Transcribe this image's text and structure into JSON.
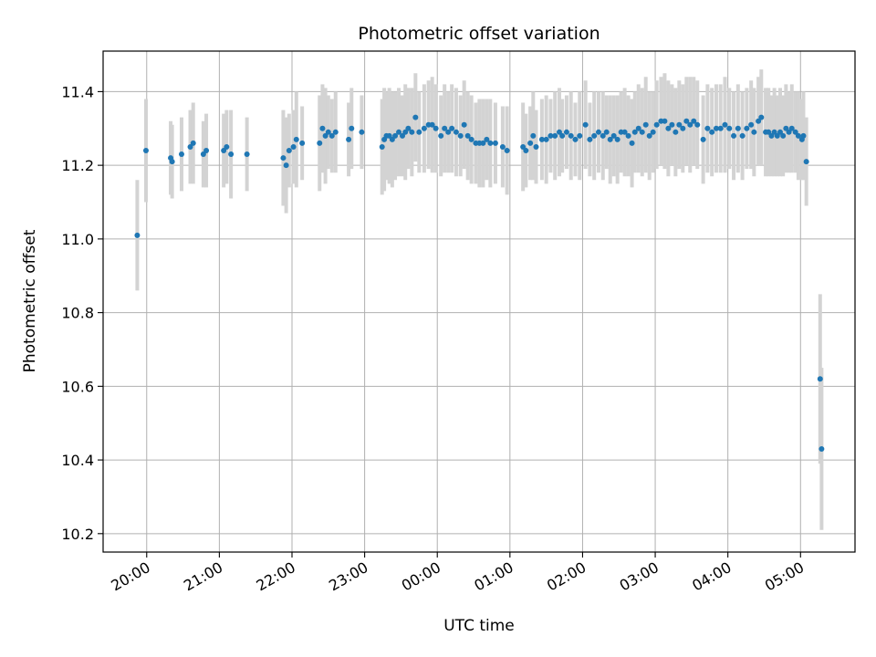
{
  "chart_data": {
    "type": "scatter",
    "title": "Photometric offset variation",
    "xlabel": "UTC time",
    "ylabel": "Photometric offset",
    "x_units": "hours after 20:00 UTC",
    "xlim": [
      -0.6,
      9.75
    ],
    "ylim": [
      10.15,
      11.51
    ],
    "grid": true,
    "errorbar_color": "#d3d3d3",
    "marker_color": "#1f77b4",
    "x_ticks": [
      {
        "value": 0,
        "label": "20:00"
      },
      {
        "value": 1,
        "label": "21:00"
      },
      {
        "value": 2,
        "label": "22:00"
      },
      {
        "value": 3,
        "label": "23:00"
      },
      {
        "value": 4,
        "label": "00:00"
      },
      {
        "value": 5,
        "label": "01:00"
      },
      {
        "value": 6,
        "label": "02:00"
      },
      {
        "value": 7,
        "label": "03:00"
      },
      {
        "value": 8,
        "label": "04:00"
      },
      {
        "value": 9,
        "label": "05:00"
      }
    ],
    "y_ticks": [
      {
        "value": 10.2,
        "label": "10.2"
      },
      {
        "value": 10.4,
        "label": "10.4"
      },
      {
        "value": 10.6,
        "label": "10.6"
      },
      {
        "value": 10.8,
        "label": "10.8"
      },
      {
        "value": 11.0,
        "label": "11.0"
      },
      {
        "value": 11.2,
        "label": "11.2"
      },
      {
        "value": 11.4,
        "label": "11.4"
      }
    ],
    "points": [
      [
        -0.13,
        11.01,
        0.15
      ],
      [
        -0.01,
        11.24,
        0.14
      ],
      [
        0.33,
        11.22,
        0.1
      ],
      [
        0.35,
        11.21,
        0.1
      ],
      [
        0.48,
        11.23,
        0.1
      ],
      [
        0.6,
        11.25,
        0.1
      ],
      [
        0.64,
        11.26,
        0.11
      ],
      [
        0.78,
        11.23,
        0.09
      ],
      [
        0.82,
        11.24,
        0.1
      ],
      [
        1.06,
        11.24,
        0.1
      ],
      [
        1.1,
        11.25,
        0.1
      ],
      [
        1.16,
        11.23,
        0.12
      ],
      [
        1.38,
        11.23,
        0.1
      ],
      [
        1.88,
        11.22,
        0.13
      ],
      [
        1.92,
        11.2,
        0.13
      ],
      [
        1.96,
        11.24,
        0.1
      ],
      [
        2.02,
        11.25,
        0.1
      ],
      [
        2.06,
        11.27,
        0.13
      ],
      [
        2.14,
        11.26,
        0.1
      ],
      [
        2.38,
        11.26,
        0.13
      ],
      [
        2.42,
        11.3,
        0.12
      ],
      [
        2.46,
        11.28,
        0.13
      ],
      [
        2.5,
        11.29,
        0.1
      ],
      [
        2.55,
        11.28,
        0.1
      ],
      [
        2.6,
        11.29,
        0.11
      ],
      [
        2.78,
        11.27,
        0.1
      ],
      [
        2.82,
        11.3,
        0.11
      ],
      [
        2.96,
        11.29,
        0.1
      ],
      [
        3.24,
        11.25,
        0.13
      ],
      [
        3.27,
        11.27,
        0.14
      ],
      [
        3.3,
        11.28,
        0.12
      ],
      [
        3.34,
        11.28,
        0.13
      ],
      [
        3.38,
        11.27,
        0.13
      ],
      [
        3.42,
        11.28,
        0.12
      ],
      [
        3.47,
        11.29,
        0.12
      ],
      [
        3.52,
        11.28,
        0.11
      ],
      [
        3.56,
        11.29,
        0.13
      ],
      [
        3.6,
        11.3,
        0.11
      ],
      [
        3.65,
        11.29,
        0.12
      ],
      [
        3.7,
        11.33,
        0.12
      ],
      [
        3.75,
        11.29,
        0.11
      ],
      [
        3.82,
        11.3,
        0.12
      ],
      [
        3.88,
        11.31,
        0.12
      ],
      [
        3.93,
        11.31,
        0.13
      ],
      [
        3.98,
        11.3,
        0.12
      ],
      [
        4.05,
        11.28,
        0.11
      ],
      [
        4.1,
        11.3,
        0.12
      ],
      [
        4.15,
        11.29,
        0.11
      ],
      [
        4.2,
        11.3,
        0.12
      ],
      [
        4.26,
        11.29,
        0.12
      ],
      [
        4.32,
        11.28,
        0.11
      ],
      [
        4.37,
        11.31,
        0.12
      ],
      [
        4.42,
        11.28,
        0.12
      ],
      [
        4.47,
        11.27,
        0.12
      ],
      [
        4.53,
        11.26,
        0.11
      ],
      [
        4.58,
        11.26,
        0.12
      ],
      [
        4.63,
        11.26,
        0.12
      ],
      [
        4.68,
        11.27,
        0.11
      ],
      [
        4.73,
        11.26,
        0.12
      ],
      [
        4.8,
        11.26,
        0.11
      ],
      [
        4.9,
        11.25,
        0.11
      ],
      [
        4.96,
        11.24,
        0.12
      ],
      [
        5.18,
        11.25,
        0.12
      ],
      [
        5.22,
        11.24,
        0.1
      ],
      [
        5.28,
        11.26,
        0.1
      ],
      [
        5.32,
        11.28,
        0.12
      ],
      [
        5.36,
        11.25,
        0.1
      ],
      [
        5.44,
        11.27,
        0.11
      ],
      [
        5.5,
        11.27,
        0.12
      ],
      [
        5.56,
        11.28,
        0.1
      ],
      [
        5.62,
        11.28,
        0.12
      ],
      [
        5.68,
        11.29,
        0.12
      ],
      [
        5.72,
        11.28,
        0.1
      ],
      [
        5.78,
        11.29,
        0.1
      ],
      [
        5.84,
        11.28,
        0.12
      ],
      [
        5.9,
        11.27,
        0.1
      ],
      [
        5.96,
        11.28,
        0.12
      ],
      [
        6.04,
        11.31,
        0.12
      ],
      [
        6.1,
        11.27,
        0.1
      ],
      [
        6.16,
        11.28,
        0.12
      ],
      [
        6.22,
        11.29,
        0.11
      ],
      [
        6.28,
        11.28,
        0.12
      ],
      [
        6.33,
        11.29,
        0.1
      ],
      [
        6.38,
        11.27,
        0.12
      ],
      [
        6.43,
        11.28,
        0.11
      ],
      [
        6.48,
        11.27,
        0.12
      ],
      [
        6.53,
        11.29,
        0.11
      ],
      [
        6.58,
        11.29,
        0.12
      ],
      [
        6.63,
        11.28,
        0.11
      ],
      [
        6.68,
        11.26,
        0.12
      ],
      [
        6.72,
        11.29,
        0.11
      ],
      [
        6.77,
        11.3,
        0.12
      ],
      [
        6.82,
        11.29,
        0.12
      ],
      [
        6.87,
        11.31,
        0.13
      ],
      [
        6.92,
        11.28,
        0.12
      ],
      [
        6.97,
        11.29,
        0.11
      ],
      [
        7.02,
        11.31,
        0.12
      ],
      [
        7.08,
        11.32,
        0.12
      ],
      [
        7.13,
        11.32,
        0.13
      ],
      [
        7.18,
        11.3,
        0.13
      ],
      [
        7.23,
        11.31,
        0.11
      ],
      [
        7.28,
        11.29,
        0.12
      ],
      [
        7.33,
        11.31,
        0.12
      ],
      [
        7.38,
        11.3,
        0.12
      ],
      [
        7.43,
        11.32,
        0.12
      ],
      [
        7.48,
        11.31,
        0.13
      ],
      [
        7.53,
        11.32,
        0.12
      ],
      [
        7.58,
        11.31,
        0.12
      ],
      [
        7.66,
        11.27,
        0.12
      ],
      [
        7.72,
        11.3,
        0.12
      ],
      [
        7.78,
        11.29,
        0.12
      ],
      [
        7.84,
        11.3,
        0.12
      ],
      [
        7.9,
        11.3,
        0.12
      ],
      [
        7.96,
        11.31,
        0.13
      ],
      [
        8.02,
        11.3,
        0.11
      ],
      [
        8.08,
        11.28,
        0.12
      ],
      [
        8.14,
        11.3,
        0.12
      ],
      [
        8.2,
        11.28,
        0.12
      ],
      [
        8.26,
        11.3,
        0.11
      ],
      [
        8.32,
        11.31,
        0.12
      ],
      [
        8.36,
        11.29,
        0.12
      ],
      [
        8.42,
        11.32,
        0.12
      ],
      [
        8.46,
        11.33,
        0.13
      ],
      [
        8.52,
        11.29,
        0.12
      ],
      [
        8.56,
        11.29,
        0.12
      ],
      [
        8.6,
        11.28,
        0.11
      ],
      [
        8.64,
        11.29,
        0.12
      ],
      [
        8.68,
        11.28,
        0.11
      ],
      [
        8.72,
        11.29,
        0.12
      ],
      [
        8.76,
        11.28,
        0.11
      ],
      [
        8.8,
        11.3,
        0.12
      ],
      [
        8.84,
        11.29,
        0.11
      ],
      [
        8.88,
        11.3,
        0.12
      ],
      [
        8.93,
        11.29,
        0.11
      ],
      [
        8.97,
        11.28,
        0.12
      ],
      [
        9.02,
        11.27,
        0.11
      ],
      [
        9.04,
        11.28,
        0.12
      ],
      [
        9.08,
        11.21,
        0.12
      ],
      [
        9.27,
        10.62,
        0.23
      ],
      [
        9.29,
        10.43,
        0.22
      ]
    ]
  }
}
